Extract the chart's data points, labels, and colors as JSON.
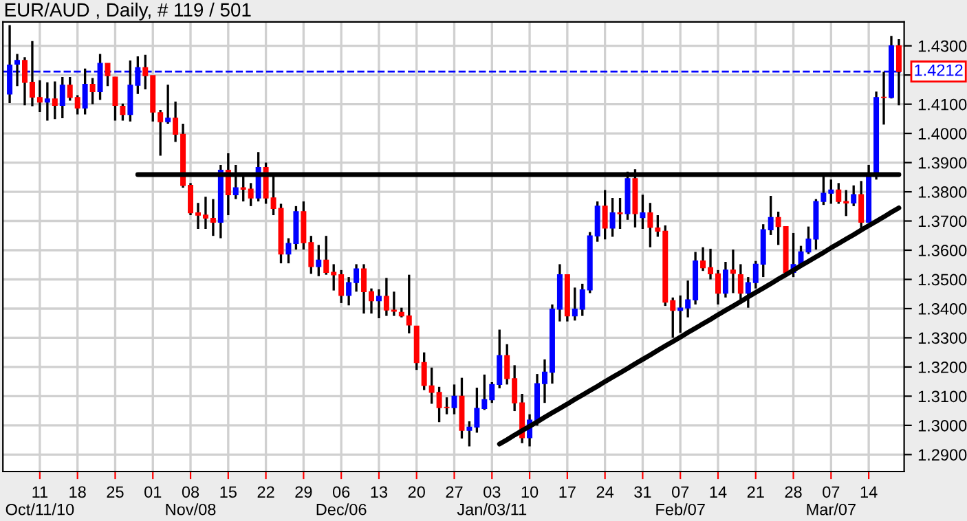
{
  "chart_data": {
    "type": "candlestick",
    "title": "EUR/AUD , Daily, # 119 / 501",
    "ylim": [
      1.2842,
      1.4382
    ],
    "categories": [
      null,
      null,
      null,
      null,
      "11\nOct/11/10",
      null,
      null,
      null,
      null,
      "18",
      null,
      null,
      null,
      null,
      "25",
      null,
      null,
      null,
      null,
      "01",
      null,
      null,
      null,
      null,
      "08\nNov/08",
      null,
      null,
      null,
      null,
      "15",
      null,
      null,
      null,
      null,
      "22",
      null,
      null,
      null,
      null,
      "29",
      null,
      null,
      null,
      null,
      "06\nDec/06",
      null,
      null,
      null,
      null,
      "13",
      null,
      null,
      null,
      null,
      "20",
      null,
      null,
      null,
      null,
      "27",
      null,
      null,
      null,
      null,
      "03\nJan/03/11",
      null,
      null,
      null,
      null,
      "10",
      null,
      null,
      null,
      null,
      "17",
      null,
      null,
      null,
      null,
      "24",
      null,
      null,
      null,
      null,
      "31",
      null,
      null,
      null,
      null,
      "07\nFeb/07",
      null,
      null,
      null,
      null,
      "14",
      null,
      null,
      null,
      null,
      "21",
      null,
      null,
      null,
      null,
      "28",
      null,
      null,
      null,
      null,
      "07\nMar/07",
      null,
      null,
      null,
      null,
      "14",
      null,
      null,
      null,
      null
    ],
    "yticks": [
      {
        "value": 1.29,
        "label": "1.2900"
      },
      {
        "value": 1.3,
        "label": "1.3000"
      },
      {
        "value": 1.31,
        "label": "1.3100"
      },
      {
        "value": 1.32,
        "label": "1.3200"
      },
      {
        "value": 1.33,
        "label": "1.3300"
      },
      {
        "value": 1.34,
        "label": "1.3400"
      },
      {
        "value": 1.35,
        "label": "1.3500"
      },
      {
        "value": 1.36,
        "label": "1.3600"
      },
      {
        "value": 1.37,
        "label": "1.3700"
      },
      {
        "value": 1.38,
        "label": "1.3800"
      },
      {
        "value": 1.39,
        "label": "1.3900"
      },
      {
        "value": 1.4,
        "label": "1.4000"
      },
      {
        "value": 1.41,
        "label": "1.4100"
      },
      {
        "value": 1.42,
        "label": null
      },
      {
        "value": 1.43,
        "label": "1.4300"
      }
    ],
    "grid": true,
    "ref_lines": [
      {
        "axis": "y",
        "value": 1.4212,
        "label": "1.4212",
        "color": "#0000ff",
        "line_style": "dashed"
      }
    ],
    "series": [
      {
        "ohlc": [
          [
            1.4135,
            1.4371,
            1.4104,
            1.4234
          ],
          [
            1.4237,
            1.4272,
            1.4162,
            1.425
          ],
          [
            1.425,
            1.4261,
            1.4096,
            1.4175
          ],
          [
            1.4175,
            1.4316,
            1.4093,
            1.4124
          ],
          [
            1.4123,
            1.4182,
            1.4073,
            1.4107
          ],
          [
            1.4107,
            1.4175,
            1.4044,
            1.4118
          ],
          [
            1.4118,
            1.4178,
            1.4049,
            1.4096
          ],
          [
            1.4096,
            1.4193,
            1.4052,
            1.4165
          ],
          [
            1.4165,
            1.4193,
            1.4112,
            1.4123
          ],
          [
            1.4123,
            1.4131,
            1.4065,
            1.4087
          ],
          [
            1.4087,
            1.4222,
            1.4065,
            1.4168
          ],
          [
            1.4168,
            1.419,
            1.41,
            1.4143
          ],
          [
            1.4143,
            1.4272,
            1.4115,
            1.424
          ],
          [
            1.424,
            1.424,
            1.4162,
            1.4198
          ],
          [
            1.4193,
            1.4193,
            1.4044,
            1.4096
          ],
          [
            1.4093,
            1.4102,
            1.4044,
            1.4065
          ],
          [
            1.4065,
            1.425,
            1.4041,
            1.4165
          ],
          [
            1.4165,
            1.4264,
            1.4135,
            1.4225
          ],
          [
            1.4225,
            1.4269,
            1.4151,
            1.4198
          ],
          [
            1.4198,
            1.4198,
            1.4041,
            1.4073
          ],
          [
            1.4071,
            1.408,
            1.3924,
            1.404
          ],
          [
            1.404,
            1.4167,
            1.4033,
            1.4052
          ],
          [
            1.4052,
            1.4109,
            1.3971,
            1.3997
          ],
          [
            1.3997,
            1.4033,
            1.3814,
            1.3822
          ],
          [
            1.3822,
            1.383,
            1.372,
            1.3728
          ],
          [
            1.3728,
            1.3762,
            1.3673,
            1.372
          ],
          [
            1.372,
            1.3783,
            1.3673,
            1.371
          ],
          [
            1.3709,
            1.3775,
            1.3649,
            1.3696
          ],
          [
            1.3696,
            1.3892,
            1.3641,
            1.3874
          ],
          [
            1.3874,
            1.3932,
            1.372,
            1.379
          ],
          [
            1.379,
            1.3892,
            1.3775,
            1.3814
          ],
          [
            1.3814,
            1.3861,
            1.3767,
            1.3809
          ],
          [
            1.3809,
            1.383,
            1.3751,
            1.3779
          ],
          [
            1.3779,
            1.3936,
            1.3767,
            1.3883
          ],
          [
            1.3883,
            1.39,
            1.3759,
            1.3779
          ],
          [
            1.3779,
            1.3861,
            1.372,
            1.3743
          ],
          [
            1.3743,
            1.3759,
            1.3555,
            1.3587
          ],
          [
            1.3587,
            1.3641,
            1.3555,
            1.3623
          ],
          [
            1.3623,
            1.3751,
            1.3602,
            1.3732
          ],
          [
            1.3732,
            1.3767,
            1.3602,
            1.3626
          ],
          [
            1.3626,
            1.3649,
            1.3519,
            1.3544
          ],
          [
            1.3544,
            1.3618,
            1.3511,
            1.3566
          ],
          [
            1.3566,
            1.3649,
            1.3516,
            1.3524
          ],
          [
            1.3524,
            1.3552,
            1.3462,
            1.3516
          ],
          [
            1.3516,
            1.3532,
            1.3419,
            1.3445
          ],
          [
            1.3445,
            1.3508,
            1.3411,
            1.3489
          ],
          [
            1.3489,
            1.3552,
            1.3458,
            1.3536
          ],
          [
            1.3536,
            1.3552,
            1.3383,
            1.3458
          ],
          [
            1.3458,
            1.3469,
            1.3383,
            1.3427
          ],
          [
            1.3427,
            1.3466,
            1.3367,
            1.3442
          ],
          [
            1.3442,
            1.3505,
            1.3375,
            1.3395
          ],
          [
            1.3395,
            1.3458,
            1.3375,
            1.3391
          ],
          [
            1.3387,
            1.3403,
            1.337,
            1.3375
          ],
          [
            1.3375,
            1.3516,
            1.3315,
            1.3344
          ],
          [
            1.334,
            1.334,
            1.319,
            1.3215
          ],
          [
            1.3215,
            1.325,
            1.3121,
            1.3137
          ],
          [
            1.3135,
            1.3198,
            1.3074,
            1.3113
          ],
          [
            1.3113,
            1.3132,
            1.3011,
            1.3061
          ],
          [
            1.3062,
            1.3096,
            1.3038,
            1.3061
          ],
          [
            1.3061,
            1.314,
            1.3038,
            1.31
          ],
          [
            1.31,
            1.3163,
            1.2955,
            1.2983
          ],
          [
            1.2983,
            1.3014,
            1.2928,
            1.2994
          ],
          [
            1.2994,
            1.3129,
            1.2975,
            1.3058
          ],
          [
            1.3058,
            1.3174,
            1.3053,
            1.3088
          ],
          [
            1.3088,
            1.3148,
            1.3077,
            1.314
          ],
          [
            1.314,
            1.3328,
            1.3127,
            1.3239
          ],
          [
            1.3239,
            1.3278,
            1.314,
            1.316
          ],
          [
            1.316,
            1.3206,
            1.3049,
            1.3077
          ],
          [
            1.3077,
            1.3108,
            1.2939,
            1.2958
          ],
          [
            1.2958,
            1.3038,
            1.2928,
            1.3018
          ],
          [
            1.3018,
            1.3176,
            1.2999,
            1.3143
          ],
          [
            1.3143,
            1.3226,
            1.3077,
            1.3182
          ],
          [
            1.3182,
            1.3414,
            1.3143,
            1.3398
          ],
          [
            1.3398,
            1.3552,
            1.3356,
            1.3516
          ],
          [
            1.3516,
            1.3516,
            1.3356,
            1.3375
          ],
          [
            1.3375,
            1.3472,
            1.3359,
            1.3398
          ],
          [
            1.3398,
            1.3485,
            1.3375,
            1.3464
          ],
          [
            1.3464,
            1.3662,
            1.3453,
            1.3649
          ],
          [
            1.3649,
            1.3767,
            1.3629,
            1.3751
          ],
          [
            1.3751,
            1.3806,
            1.3637,
            1.3676
          ],
          [
            1.3676,
            1.3779,
            1.3646,
            1.3728
          ],
          [
            1.3728,
            1.3779,
            1.3673,
            1.3725
          ],
          [
            1.3725,
            1.3869,
            1.3704,
            1.3845
          ],
          [
            1.3845,
            1.3877,
            1.3678,
            1.3725
          ],
          [
            1.3712,
            1.379,
            1.3673,
            1.3728
          ],
          [
            1.3728,
            1.3762,
            1.361,
            1.3678
          ],
          [
            1.3676,
            1.372,
            1.3646,
            1.3665
          ],
          [
            1.3665,
            1.3685,
            1.3409,
            1.3422
          ],
          [
            1.3427,
            1.3438,
            1.33,
            1.3394
          ],
          [
            1.3394,
            1.3445,
            1.3317,
            1.3402
          ],
          [
            1.3402,
            1.3496,
            1.337,
            1.343
          ],
          [
            1.343,
            1.3594,
            1.3414,
            1.3563
          ],
          [
            1.3563,
            1.361,
            1.3529,
            1.354
          ],
          [
            1.354,
            1.3605,
            1.35,
            1.3519
          ],
          [
            1.3519,
            1.3532,
            1.3414,
            1.3453
          ],
          [
            1.3453,
            1.356,
            1.3438,
            1.3532
          ],
          [
            1.3532,
            1.3602,
            1.3453,
            1.3521
          ],
          [
            1.3516,
            1.3552,
            1.343,
            1.3453
          ],
          [
            1.3453,
            1.3508,
            1.3403,
            1.3489
          ],
          [
            1.3489,
            1.3563,
            1.3469,
            1.3552
          ],
          [
            1.3552,
            1.3689,
            1.3508,
            1.367
          ],
          [
            1.367,
            1.3786,
            1.3652,
            1.3712
          ],
          [
            1.3712,
            1.3732,
            1.3618,
            1.3681
          ],
          [
            1.3681,
            1.3681,
            1.3508,
            1.3524
          ],
          [
            1.3524,
            1.3659,
            1.3508,
            1.3551
          ],
          [
            1.3551,
            1.3615,
            1.354,
            1.3594
          ],
          [
            1.3594,
            1.3681,
            1.3587,
            1.3638
          ],
          [
            1.3638,
            1.3775,
            1.3602,
            1.3767
          ],
          [
            1.3767,
            1.3861,
            1.3755,
            1.3795
          ],
          [
            1.3795,
            1.3842,
            1.3759,
            1.3806
          ],
          [
            1.3806,
            1.383,
            1.3759,
            1.3767
          ],
          [
            1.3767,
            1.3806,
            1.3717,
            1.3762
          ],
          [
            1.3762,
            1.3822,
            1.3751,
            1.379
          ],
          [
            1.379,
            1.3837,
            1.3676,
            1.3696
          ],
          [
            1.3696,
            1.3892,
            1.3696,
            1.3853
          ],
          [
            1.3853,
            1.4143,
            1.3842,
            1.4123
          ],
          [
            1.4124,
            1.4211,
            1.403,
            1.4123
          ],
          [
            1.4123,
            1.4334,
            1.412,
            1.43
          ],
          [
            1.43,
            1.4323,
            1.4096,
            1.4212
          ]
        ],
        "colors": [
          "#0000ff",
          "#0000ff",
          "#ff0000",
          "#ff0000",
          "#ff0000",
          "#0000ff",
          "#ff0000",
          "#0000ff",
          "#ff0000",
          "#ff0000",
          "#0000ff",
          "#ff0000",
          "#0000ff",
          "#ff0000",
          "#ff0000",
          "#ff0000",
          "#0000ff",
          "#0000ff",
          "#ff0000",
          "#ff0000",
          "#ff0000",
          "#0000ff",
          "#ff0000",
          "#ff0000",
          "#ff0000",
          "#ff0000",
          "#ff0000",
          "#ff0000",
          "#0000ff",
          "#ff0000",
          "#0000ff",
          "#ff0000",
          "#ff0000",
          "#0000ff",
          "#ff0000",
          "#ff0000",
          "#ff0000",
          "#0000ff",
          "#0000ff",
          "#ff0000",
          "#ff0000",
          "#0000ff",
          "#ff0000",
          "#ff0000",
          "#ff0000",
          "#0000ff",
          "#0000ff",
          "#ff0000",
          "#ff0000",
          "#0000ff",
          "#ff0000",
          "#ff0000",
          "#ff0000",
          "#ff0000",
          "#ff0000",
          "#ff0000",
          "#ff0000",
          "#ff0000",
          "#ff0000",
          "#0000ff",
          "#ff0000",
          "#0000ff",
          "#0000ff",
          "#0000ff",
          "#0000ff",
          "#0000ff",
          "#ff0000",
          "#ff0000",
          "#ff0000",
          "#0000ff",
          "#0000ff",
          "#0000ff",
          "#0000ff",
          "#0000ff",
          "#ff0000",
          "#0000ff",
          "#0000ff",
          "#0000ff",
          "#0000ff",
          "#ff0000",
          "#0000ff",
          "#ff0000",
          "#0000ff",
          "#ff0000",
          "#0000ff",
          "#ff0000",
          "#ff0000",
          "#ff0000",
          "#ff0000",
          "#0000ff",
          "#0000ff",
          "#0000ff",
          "#ff0000",
          "#ff0000",
          "#ff0000",
          "#0000ff",
          "#ff0000",
          "#ff0000",
          "#0000ff",
          "#0000ff",
          "#0000ff",
          "#0000ff",
          "#ff0000",
          "#ff0000",
          "#0000ff",
          "#0000ff",
          "#0000ff",
          "#0000ff",
          "#0000ff",
          "#0000ff",
          "#ff0000",
          "#ff0000",
          "#0000ff",
          "#ff0000",
          "#0000ff",
          "#0000ff",
          "#ff0000",
          "#0000ff",
          "#ff0000"
        ]
      },
      {
        "type": "line",
        "color": "#000000",
        "values": [
          null,
          null,
          null,
          null,
          null,
          null,
          null,
          null,
          null,
          null,
          null,
          null,
          null,
          null,
          null,
          null,
          null,
          1.3859,
          1.3859,
          1.3859,
          1.3859,
          1.3859,
          1.3859,
          1.3859,
          1.3859,
          1.3859,
          1.3859,
          1.3859,
          1.3859,
          1.3859,
          1.3859,
          1.3859,
          1.3859,
          1.3859,
          1.3859,
          1.3859,
          1.3859,
          1.3859,
          1.3859,
          1.3859,
          1.3859,
          1.3859,
          1.3859,
          1.3859,
          1.3859,
          1.3859,
          1.3859,
          1.3859,
          1.3859,
          1.3859,
          1.3859,
          1.3859,
          1.3859,
          1.3859,
          1.3859,
          1.3859,
          1.3859,
          1.3859,
          1.3859,
          1.3859,
          1.3859,
          1.3859,
          1.3859,
          1.3859,
          1.3859,
          1.3859,
          1.3859,
          1.3859,
          1.3859,
          1.3859,
          1.3859,
          1.3859,
          1.3859,
          1.3859,
          1.3859,
          1.3859,
          1.3859,
          1.3859,
          1.3859,
          1.3859,
          1.3859,
          1.3859,
          1.3859,
          1.3859,
          1.3859,
          1.3859,
          1.3859,
          1.3859,
          1.3859,
          1.3859,
          1.3859,
          1.3859,
          1.3859,
          1.3859,
          1.3859,
          1.3859,
          1.3859,
          1.3859,
          1.3859,
          1.3859,
          1.3859,
          1.3859,
          1.3859,
          1.3859,
          1.3859,
          1.3859,
          1.3859,
          1.3859,
          1.3859,
          1.3859,
          1.3859,
          1.3859,
          1.3859,
          1.3859,
          1.3859,
          1.3859,
          1.3859,
          1.3859,
          1.3859
        ]
      },
      {
        "type": "line",
        "color": "#000000",
        "values": [
          null,
          null,
          null,
          null,
          null,
          null,
          null,
          null,
          null,
          null,
          null,
          null,
          null,
          null,
          null,
          null,
          null,
          null,
          null,
          null,
          null,
          null,
          null,
          null,
          null,
          null,
          null,
          null,
          null,
          null,
          null,
          null,
          null,
          null,
          null,
          null,
          null,
          null,
          null,
          null,
          null,
          null,
          null,
          null,
          null,
          null,
          null,
          null,
          null,
          null,
          null,
          null,
          null,
          null,
          null,
          null,
          null,
          null,
          null,
          null,
          null,
          null,
          null,
          null,
          null,
          1.2936,
          1.2951,
          1.2967,
          1.2982,
          1.2997,
          1.3012,
          1.3028,
          1.3043,
          1.3058,
          1.3073,
          1.3089,
          1.3104,
          1.3119,
          1.3134,
          1.315,
          1.3165,
          1.318,
          1.3195,
          1.3211,
          1.3226,
          1.3241,
          1.3257,
          1.3272,
          1.3287,
          1.3302,
          1.3318,
          1.3333,
          1.3348,
          1.3363,
          1.3379,
          1.3394,
          1.3409,
          1.3424,
          1.344,
          1.3455,
          1.347,
          1.3485,
          1.3501,
          1.3516,
          1.3531,
          1.3547,
          1.3562,
          1.3577,
          1.3592,
          1.3608,
          1.3623,
          1.3638,
          1.3653,
          1.3669,
          1.3684,
          1.3699,
          1.3714,
          1.373,
          1.3745
        ]
      }
    ]
  }
}
